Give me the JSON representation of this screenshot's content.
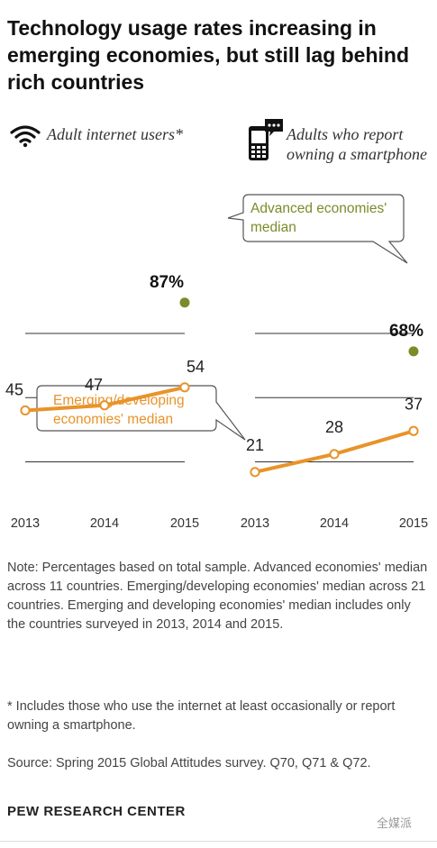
{
  "title": "Technology usage rates increasing in emerging economies, but still lag behind rich countries",
  "panels": {
    "left": {
      "label": "Adult internet users*",
      "icon": "wifi-icon"
    },
    "right": {
      "label": "Adults who report owning a smartphone",
      "icon": "phone-chat-icon"
    }
  },
  "callouts": {
    "advanced": "Advanced economies' median",
    "emerging": "Emerging/developing economies' median"
  },
  "notes": {
    "note": "Note: Percentages based on total sample. Advanced economies' median across 11 countries. Emerging/developing economies' median across 21 countries. Emerging and developing economies' median includes only the countries surveyed in 2013, 2014 and 2015.",
    "footnote": "* Includes those who use the internet at least occasionally or report owning a smartphone.",
    "source": "Source: Spring 2015 Global Attitudes survey. Q70, Q71 & Q72."
  },
  "branding": "PEW RESEARCH CENTER",
  "watermark": "全媒派",
  "colors": {
    "emerging": "#e8932a",
    "advanced": "#7a8c2a",
    "gridline": "#333333"
  },
  "chart_data": [
    {
      "type": "line",
      "title": "Adult internet users*",
      "x": [
        "2013",
        "2014",
        "2015"
      ],
      "ylim": [
        0,
        100
      ],
      "series": [
        {
          "name": "Emerging/developing economies' median",
          "values": [
            45,
            47,
            54
          ],
          "labels": [
            "45",
            "47",
            "54"
          ]
        },
        {
          "name": "Advanced economies' median",
          "values": [
            null,
            null,
            87
          ],
          "labels": [
            "",
            "",
            "87%"
          ]
        }
      ]
    },
    {
      "type": "line",
      "title": "Adults who report owning a smartphone",
      "x": [
        "2013",
        "2014",
        "2015"
      ],
      "ylim": [
        0,
        100
      ],
      "series": [
        {
          "name": "Emerging/developing economies' median",
          "values": [
            21,
            28,
            37
          ],
          "labels": [
            "21",
            "28",
            "37"
          ]
        },
        {
          "name": "Advanced economies' median",
          "values": [
            null,
            null,
            68
          ],
          "labels": [
            "",
            "",
            "68%"
          ]
        }
      ]
    }
  ]
}
